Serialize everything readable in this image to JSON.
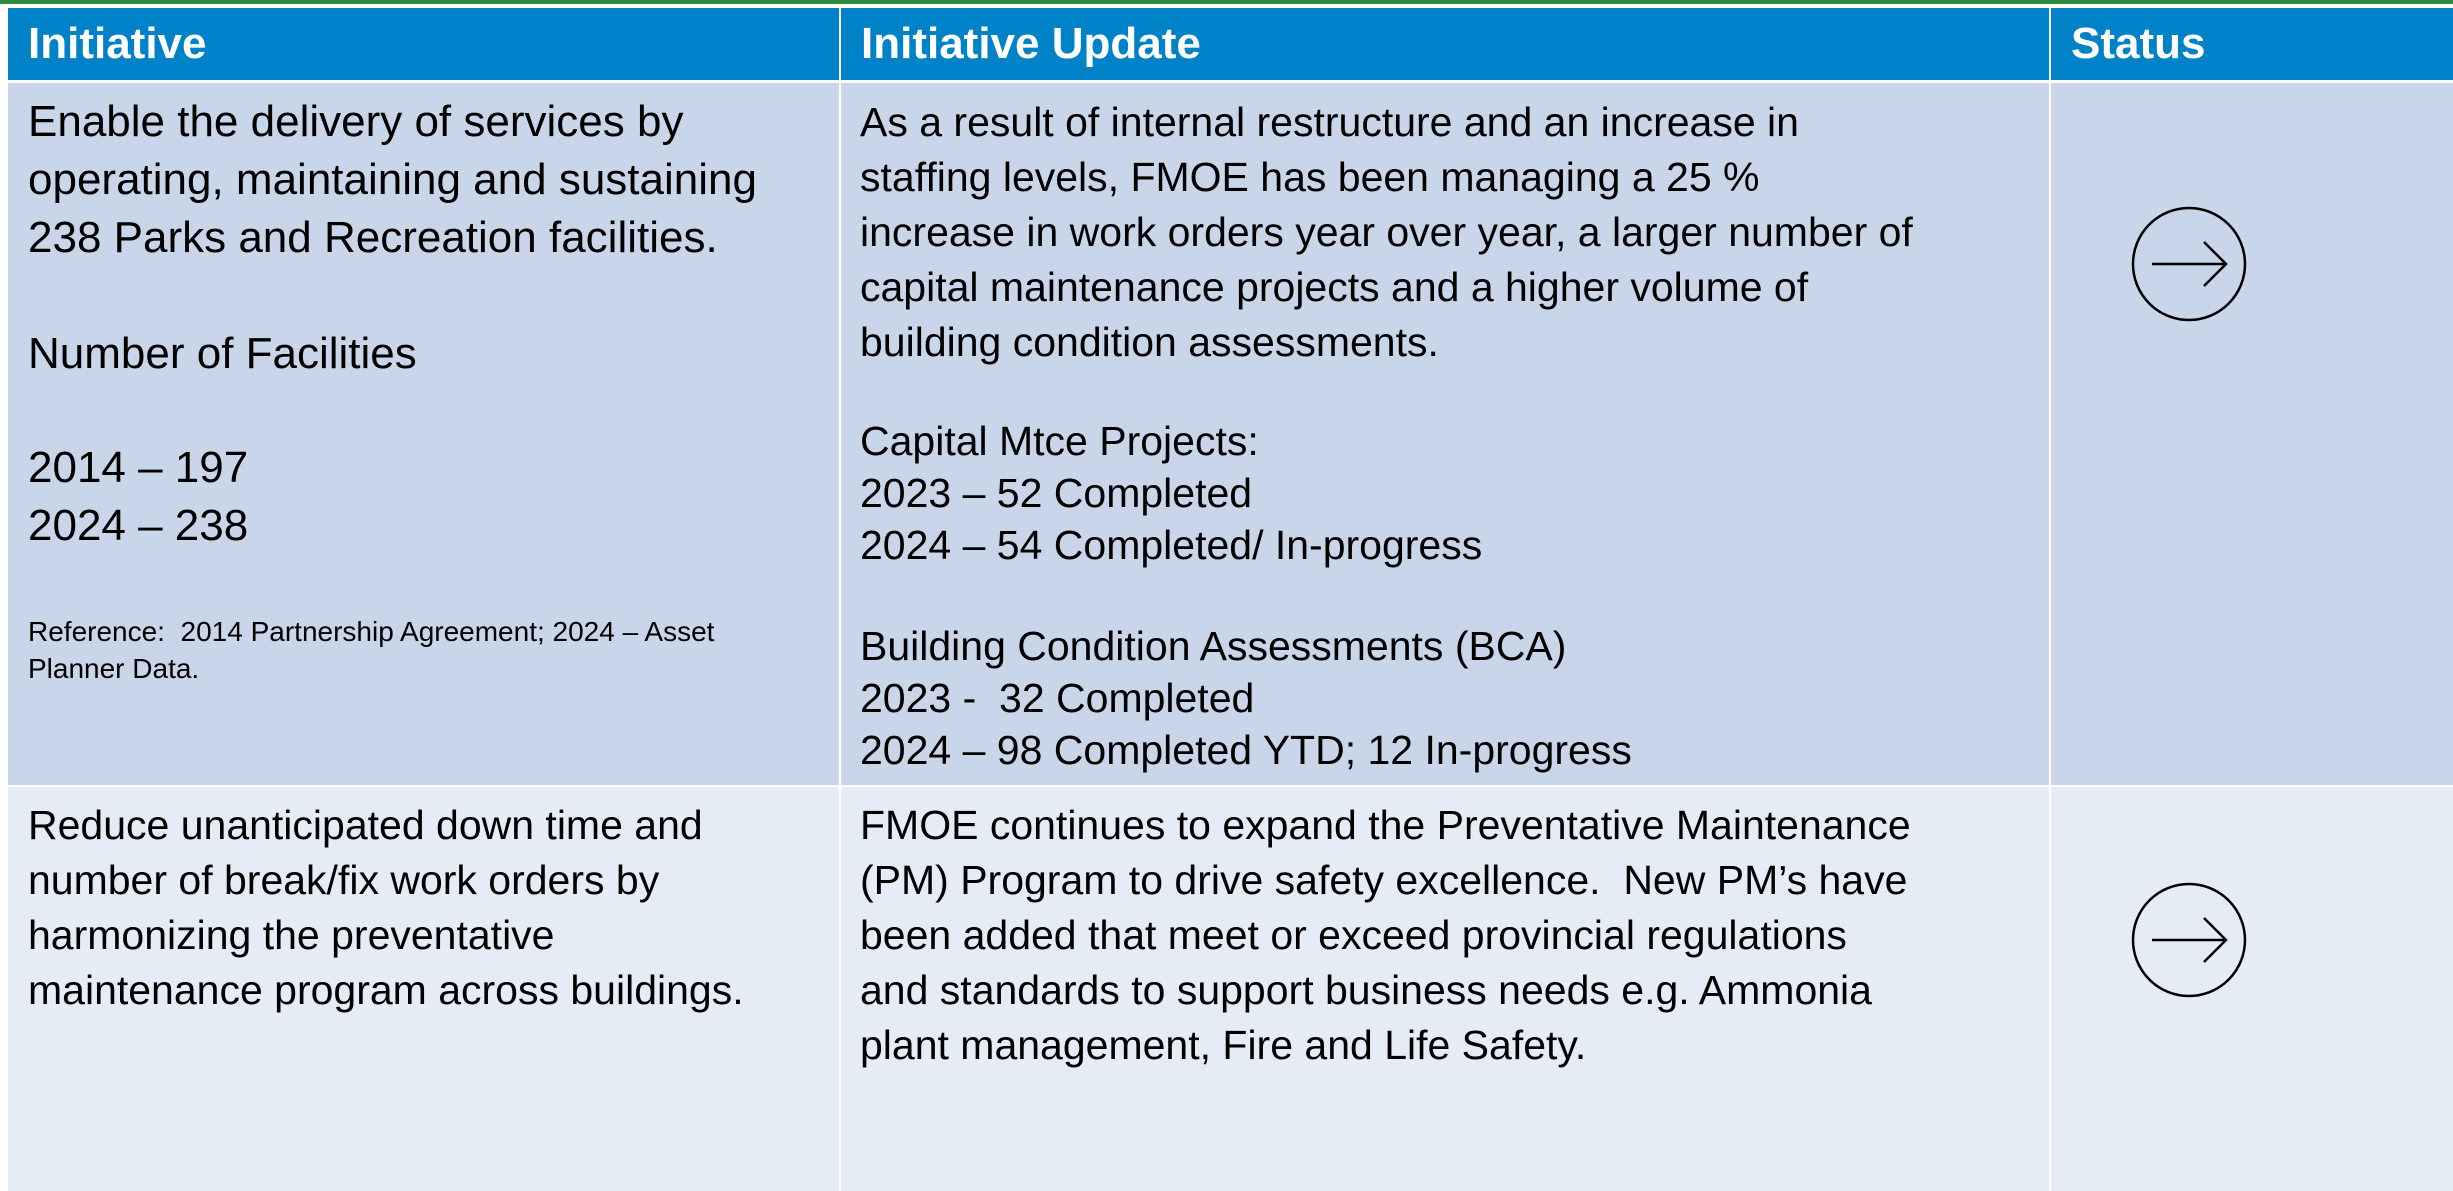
{
  "table": {
    "header": [
      "Initiative",
      "Initiative Update",
      "Status"
    ],
    "rows": [
      {
        "initiative": [
          [
            "Enable the delivery of services by",
            "operating, maintaining and sustaining",
            "238 Parks and Recreation facilities."
          ],
          [
            "Number of Facilities"
          ],
          [
            "2014 – 197",
            "2024 – 238"
          ]
        ],
        "reference": [
          "Reference:  2014 Partnership Agreement; 2024 – Asset",
          "Planner Data."
        ],
        "update": [
          [
            "As a result of internal restructure and an increase in",
            "staffing levels, FMOE has been managing a 25 %",
            "increase in work orders year over year, a larger number of",
            "capital maintenance projects and a higher volume of",
            "building condition assessments."
          ],
          [
            "Capital Mtce Projects:",
            "2023 – 52 Completed",
            "2024 – 54 Completed/ In-progress"
          ],
          [
            "Building Condition Assessments (BCA)",
            "2023 -  32 Completed",
            "2024 – 98 Completed YTD; 12 In-progress"
          ]
        ]
      },
      {
        "initiative": [
          [
            "Reduce unanticipated down time and",
            "number of break/fix work orders by",
            "harmonizing the preventative",
            "maintenance program across buildings."
          ]
        ],
        "update": [
          [
            "FMOE continues to expand the Preventative Maintenance",
            "(PM) Program to drive safety excellence.  New PM’s have",
            "been added that meet or exceed provincial regulations",
            "and standards to support business needs e.g. Ammonia",
            "plant management, Fire and Life Safety."
          ]
        ]
      }
    ]
  }
}
